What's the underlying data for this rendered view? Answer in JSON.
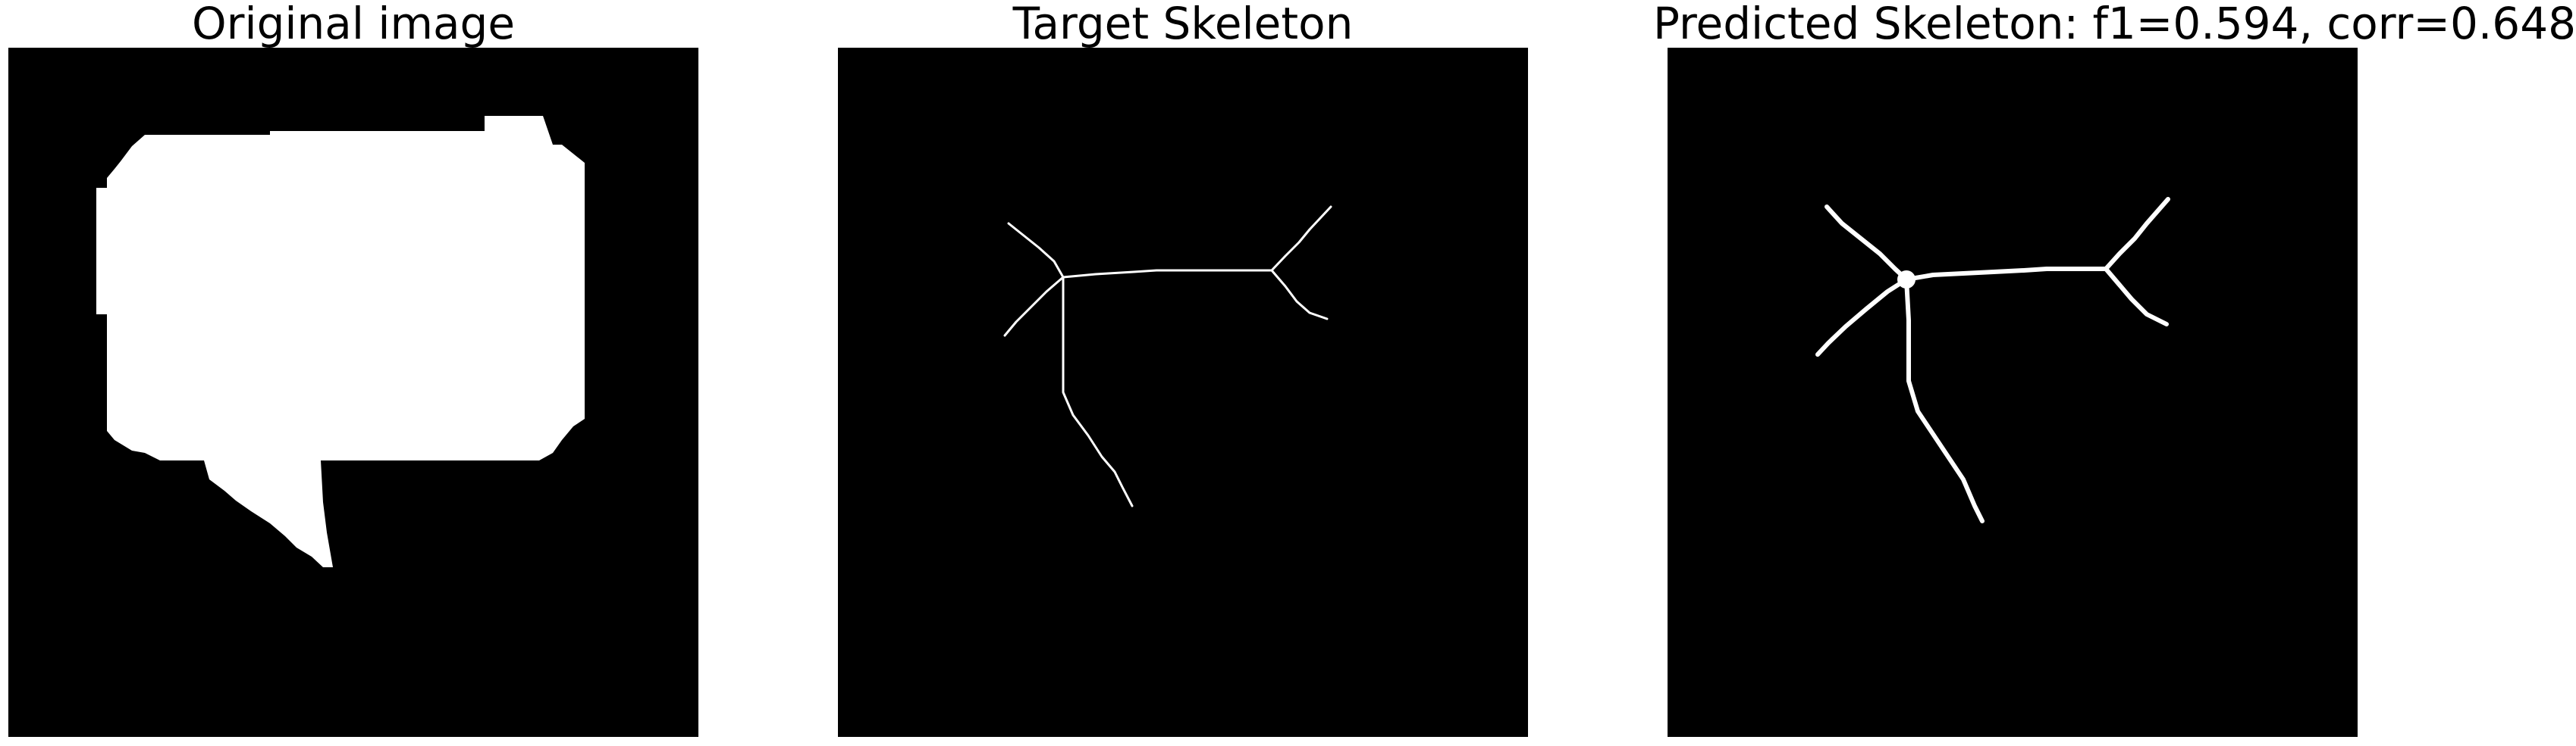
{
  "figure": {
    "panels": [
      {
        "title": "Original image"
      },
      {
        "title": "Target Skeleton"
      },
      {
        "title": "Predicted Skeleton: f1=0.594, corr=0.648"
      }
    ]
  },
  "colors": {
    "background": "#000000",
    "foreground": "#ffffff",
    "page": "#ffffff"
  }
}
